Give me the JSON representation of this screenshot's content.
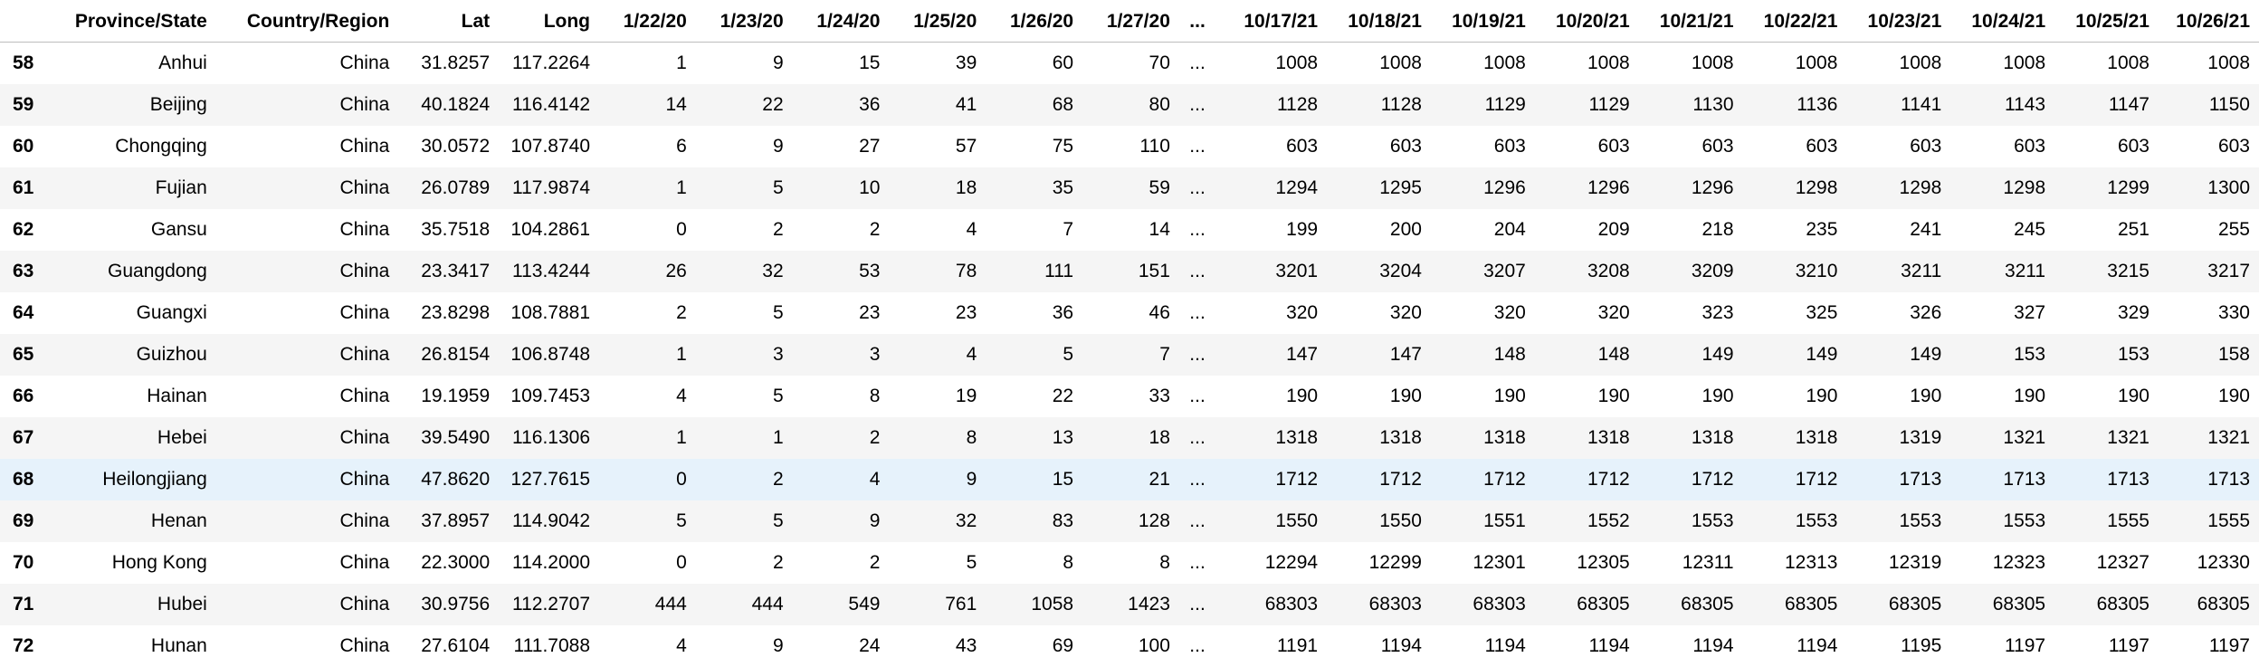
{
  "table": {
    "columns": [
      "",
      "Province/State",
      "Country/Region",
      "Lat",
      "Long",
      "1/22/20",
      "1/23/20",
      "1/24/20",
      "1/25/20",
      "1/26/20",
      "1/27/20",
      "...",
      "10/17/21",
      "10/18/21",
      "10/19/21",
      "10/20/21",
      "10/21/21",
      "10/22/21",
      "10/23/21",
      "10/24/21",
      "10/25/21",
      "10/26/21"
    ],
    "rows": [
      [
        "58",
        "Anhui",
        "China",
        "31.8257",
        "117.2264",
        "1",
        "9",
        "15",
        "39",
        "60",
        "70",
        "...",
        "1008",
        "1008",
        "1008",
        "1008",
        "1008",
        "1008",
        "1008",
        "1008",
        "1008",
        "1008"
      ],
      [
        "59",
        "Beijing",
        "China",
        "40.1824",
        "116.4142",
        "14",
        "22",
        "36",
        "41",
        "68",
        "80",
        "...",
        "1128",
        "1128",
        "1129",
        "1129",
        "1130",
        "1136",
        "1141",
        "1143",
        "1147",
        "1150"
      ],
      [
        "60",
        "Chongqing",
        "China",
        "30.0572",
        "107.8740",
        "6",
        "9",
        "27",
        "57",
        "75",
        "110",
        "...",
        "603",
        "603",
        "603",
        "603",
        "603",
        "603",
        "603",
        "603",
        "603",
        "603"
      ],
      [
        "61",
        "Fujian",
        "China",
        "26.0789",
        "117.9874",
        "1",
        "5",
        "10",
        "18",
        "35",
        "59",
        "...",
        "1294",
        "1295",
        "1296",
        "1296",
        "1296",
        "1298",
        "1298",
        "1298",
        "1299",
        "1300"
      ],
      [
        "62",
        "Gansu",
        "China",
        "35.7518",
        "104.2861",
        "0",
        "2",
        "2",
        "4",
        "7",
        "14",
        "...",
        "199",
        "200",
        "204",
        "209",
        "218",
        "235",
        "241",
        "245",
        "251",
        "255"
      ],
      [
        "63",
        "Guangdong",
        "China",
        "23.3417",
        "113.4244",
        "26",
        "32",
        "53",
        "78",
        "111",
        "151",
        "...",
        "3201",
        "3204",
        "3207",
        "3208",
        "3209",
        "3210",
        "3211",
        "3211",
        "3215",
        "3217"
      ],
      [
        "64",
        "Guangxi",
        "China",
        "23.8298",
        "108.7881",
        "2",
        "5",
        "23",
        "23",
        "36",
        "46",
        "...",
        "320",
        "320",
        "320",
        "320",
        "323",
        "325",
        "326",
        "327",
        "329",
        "330"
      ],
      [
        "65",
        "Guizhou",
        "China",
        "26.8154",
        "106.8748",
        "1",
        "3",
        "3",
        "4",
        "5",
        "7",
        "...",
        "147",
        "147",
        "148",
        "148",
        "149",
        "149",
        "149",
        "153",
        "153",
        "158"
      ],
      [
        "66",
        "Hainan",
        "China",
        "19.1959",
        "109.7453",
        "4",
        "5",
        "8",
        "19",
        "22",
        "33",
        "...",
        "190",
        "190",
        "190",
        "190",
        "190",
        "190",
        "190",
        "190",
        "190",
        "190"
      ],
      [
        "67",
        "Hebei",
        "China",
        "39.5490",
        "116.1306",
        "1",
        "1",
        "2",
        "8",
        "13",
        "18",
        "...",
        "1318",
        "1318",
        "1318",
        "1318",
        "1318",
        "1318",
        "1319",
        "1321",
        "1321",
        "1321"
      ],
      [
        "68",
        "Heilongjiang",
        "China",
        "47.8620",
        "127.7615",
        "0",
        "2",
        "4",
        "9",
        "15",
        "21",
        "...",
        "1712",
        "1712",
        "1712",
        "1712",
        "1712",
        "1712",
        "1713",
        "1713",
        "1713",
        "1713"
      ],
      [
        "69",
        "Henan",
        "China",
        "37.8957",
        "114.9042",
        "5",
        "5",
        "9",
        "32",
        "83",
        "128",
        "...",
        "1550",
        "1550",
        "1551",
        "1552",
        "1553",
        "1553",
        "1553",
        "1553",
        "1555",
        "1555"
      ],
      [
        "70",
        "Hong Kong",
        "China",
        "22.3000",
        "114.2000",
        "0",
        "2",
        "2",
        "5",
        "8",
        "8",
        "...",
        "12294",
        "12299",
        "12301",
        "12305",
        "12311",
        "12313",
        "12319",
        "12323",
        "12327",
        "12330"
      ],
      [
        "71",
        "Hubei",
        "China",
        "30.9756",
        "112.2707",
        "444",
        "444",
        "549",
        "761",
        "1058",
        "1423",
        "...",
        "68303",
        "68303",
        "68303",
        "68305",
        "68305",
        "68305",
        "68305",
        "68305",
        "68305",
        "68305"
      ],
      [
        "72",
        "Hunan",
        "China",
        "27.6104",
        "111.7088",
        "4",
        "9",
        "24",
        "43",
        "69",
        "100",
        "...",
        "1191",
        "1194",
        "1194",
        "1194",
        "1194",
        "1194",
        "1195",
        "1197",
        "1197",
        "1197"
      ]
    ],
    "hover_row_index": 10
  },
  "colors": {
    "stripe": "#f5f5f5",
    "hover": "#e6f2fb",
    "border": "#bdbdbd"
  }
}
